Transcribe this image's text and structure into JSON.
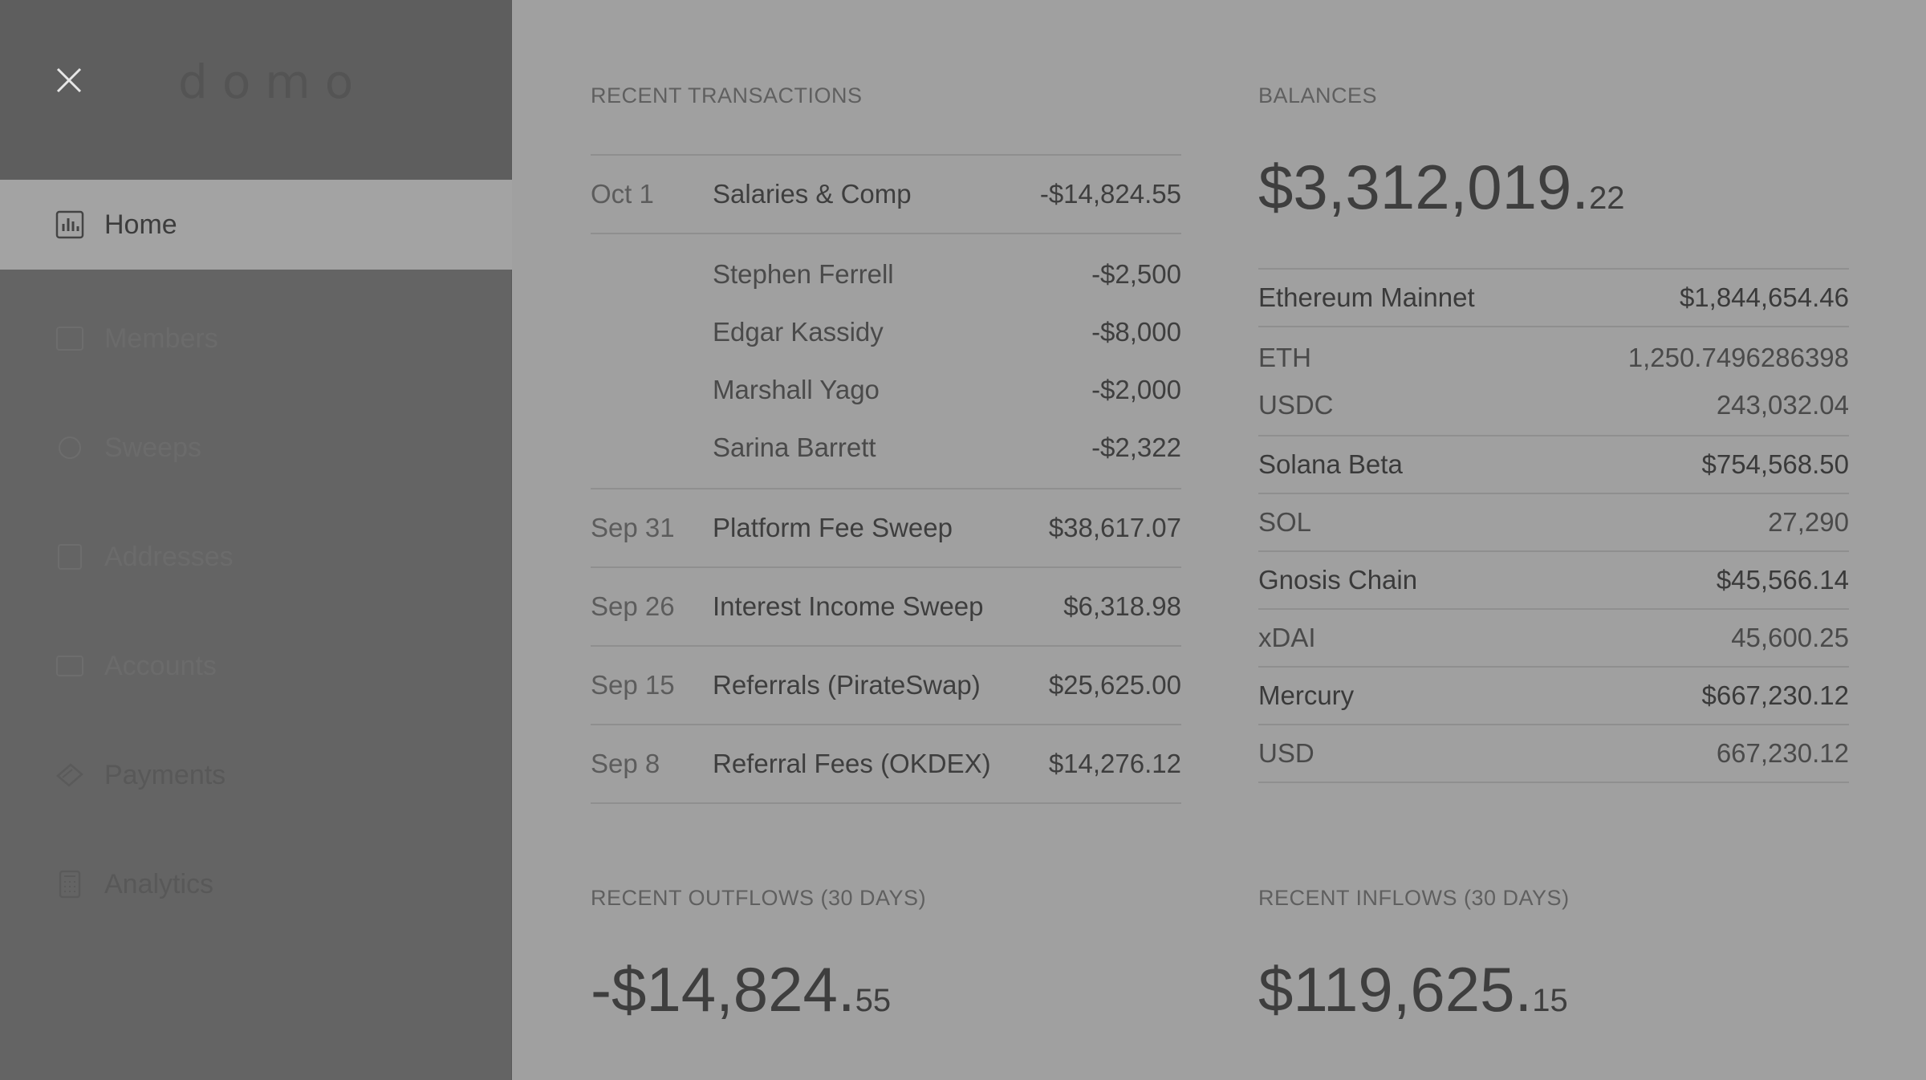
{
  "sidebar": {
    "logo": "domo",
    "items": [
      {
        "label": "Home",
        "icon": "bar-chart-icon"
      },
      {
        "label": "Members",
        "icon": "user-icon"
      },
      {
        "label": "Sweeps",
        "icon": "sweep-icon"
      },
      {
        "label": "Addresses",
        "icon": "address-icon"
      },
      {
        "label": "Accounts",
        "icon": "account-icon"
      },
      {
        "label": "Payments",
        "icon": "payments-icon"
      },
      {
        "label": "Analytics",
        "icon": "calculator-icon"
      }
    ]
  },
  "transactions": {
    "title": "RECENT TRANSACTIONS",
    "rows": [
      {
        "date": "Oct 1",
        "name": "Salaries & Comp",
        "amount": "-$14,824.55"
      },
      {
        "date": "Sep 31",
        "name": "Platform Fee Sweep",
        "amount": "$38,617.07"
      },
      {
        "date": "Sep 26",
        "name": "Interest Income Sweep",
        "amount": "$6,318.98"
      },
      {
        "date": "Sep 15",
        "name": "Referrals (PirateSwap)",
        "amount": "$25,625.00"
      },
      {
        "date": "Sep 8",
        "name": "Referral Fees (OKDEX)",
        "amount": "$14,276.12"
      }
    ],
    "sub_rows": [
      {
        "name": "Stephen Ferrell",
        "amount": "-$2,500"
      },
      {
        "name": "Edgar Kassidy",
        "amount": "-$8,000"
      },
      {
        "name": "Marshall Yago",
        "amount": "-$2,000"
      },
      {
        "name": "Sarina Barrett",
        "amount": "-$2,322"
      }
    ]
  },
  "balances": {
    "title": "BALANCES",
    "total_main": "$3,312,019.",
    "total_cents": "22",
    "chains": [
      {
        "name": "Ethereum Mainnet",
        "amount": "$1,844,654.46",
        "tokens": [
          {
            "name": "ETH",
            "amount": "1,250.7496286398"
          },
          {
            "name": "USDC",
            "amount": "243,032.04"
          }
        ]
      },
      {
        "name": "Solana Beta",
        "amount": "$754,568.50",
        "tokens": [
          {
            "name": "SOL",
            "amount": "27,290"
          }
        ]
      },
      {
        "name": "Gnosis Chain",
        "amount": "$45,566.14",
        "tokens": [
          {
            "name": "xDAI",
            "amount": "45,600.25"
          }
        ]
      },
      {
        "name": "Mercury",
        "amount": "$667,230.12",
        "tokens": [
          {
            "name": "USD",
            "amount": "667,230.12"
          }
        ]
      }
    ]
  },
  "outflows": {
    "title": "RECENT OUTFLOWS (30 DAYS)",
    "main": "-$14,824.",
    "cents": "55"
  },
  "inflows": {
    "title": "RECENT INFLOWS (30 DAYS)",
    "main": "$119,625.",
    "cents": "15"
  }
}
